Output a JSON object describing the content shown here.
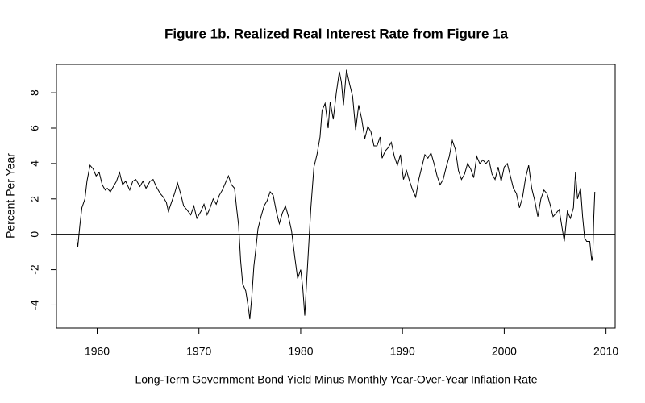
{
  "chart_data": {
    "type": "line",
    "title": "Figure 1b.    Realized Real Interest Rate from Figure 1a",
    "xlabel": "Long-Term Government Bond Yield Minus Monthly Year-Over-Year Inflation Rate",
    "ylabel": "Percent Per Year",
    "xlim": [
      1956,
      2010.9
    ],
    "ylim": [
      -5.3,
      9.6
    ],
    "xticks": [
      1960,
      1970,
      1980,
      1990,
      2000,
      2010
    ],
    "yticks": [
      -4,
      -2,
      0,
      2,
      4,
      6,
      8
    ],
    "hline": 0,
    "series": [
      {
        "color": "#000000",
        "x": [
          1958.0,
          1958.1,
          1958.3,
          1958.5,
          1958.8,
          1959.0,
          1959.3,
          1959.6,
          1959.9,
          1960.2,
          1960.5,
          1960.8,
          1961.0,
          1961.3,
          1961.6,
          1961.9,
          1962.2,
          1962.5,
          1962.8,
          1963.2,
          1963.5,
          1963.8,
          1964.2,
          1964.5,
          1964.8,
          1965.2,
          1965.5,
          1965.8,
          1966.2,
          1966.5,
          1966.8,
          1967.0,
          1967.3,
          1967.6,
          1967.9,
          1968.2,
          1968.5,
          1968.8,
          1969.2,
          1969.5,
          1969.8,
          1970.2,
          1970.5,
          1970.8,
          1971.1,
          1971.4,
          1971.7,
          1972.0,
          1972.3,
          1972.6,
          1972.9,
          1973.2,
          1973.5,
          1973.7,
          1973.9,
          1974.1,
          1974.3,
          1974.6,
          1974.9,
          1975.0,
          1975.2,
          1975.4,
          1975.6,
          1975.8,
          1976.1,
          1976.4,
          1976.7,
          1977.0,
          1977.3,
          1977.6,
          1977.9,
          1978.2,
          1978.5,
          1978.8,
          1979.1,
          1979.4,
          1979.7,
          1980.0,
          1980.2,
          1980.4,
          1980.6,
          1980.8,
          1981.0,
          1981.3,
          1981.6,
          1981.9,
          1982.1,
          1982.4,
          1982.7,
          1982.9,
          1983.2,
          1983.5,
          1983.8,
          1984.0,
          1984.2,
          1984.5,
          1984.8,
          1985.1,
          1985.4,
          1985.7,
          1986.0,
          1986.3,
          1986.6,
          1986.9,
          1987.2,
          1987.5,
          1987.8,
          1988.0,
          1988.3,
          1988.6,
          1988.9,
          1989.2,
          1989.5,
          1989.8,
          1990.1,
          1990.4,
          1990.7,
          1991.0,
          1991.3,
          1991.6,
          1991.9,
          1992.2,
          1992.5,
          1992.8,
          1993.1,
          1993.4,
          1993.7,
          1994.0,
          1994.3,
          1994.6,
          1994.9,
          1995.2,
          1995.5,
          1995.8,
          1996.1,
          1996.4,
          1996.7,
          1997.0,
          1997.3,
          1997.6,
          1997.9,
          1998.2,
          1998.5,
          1998.8,
          1999.1,
          1999.4,
          1999.7,
          2000.0,
          2000.3,
          2000.6,
          2000.9,
          2001.2,
          2001.5,
          2001.8,
          2002.1,
          2002.4,
          2002.7,
          2003.0,
          2003.3,
          2003.6,
          2003.9,
          2004.2,
          2004.5,
          2004.8,
          2005.1,
          2005.4,
          2005.7,
          2005.9,
          2006.2,
          2006.5,
          2006.8,
          2007.0,
          2007.2,
          2007.5,
          2007.7,
          2007.9,
          2008.1,
          2008.4,
          2008.6,
          2008.7,
          2008.8,
          2008.9
        ],
        "values": [
          -0.3,
          -0.7,
          0.5,
          1.5,
          2.0,
          3.0,
          3.9,
          3.7,
          3.3,
          3.5,
          2.8,
          2.5,
          2.6,
          2.4,
          2.7,
          3.0,
          3.5,
          2.8,
          3.0,
          2.5,
          3.0,
          3.1,
          2.7,
          3.0,
          2.6,
          3.0,
          3.1,
          2.7,
          2.3,
          2.1,
          1.8,
          1.3,
          1.8,
          2.3,
          2.9,
          2.3,
          1.6,
          1.4,
          1.1,
          1.6,
          0.9,
          1.3,
          1.7,
          1.1,
          1.5,
          2.0,
          1.7,
          2.2,
          2.5,
          2.9,
          3.3,
          2.8,
          2.6,
          1.5,
          0.5,
          -1.5,
          -2.8,
          -3.2,
          -4.3,
          -4.8,
          -3.5,
          -1.8,
          -0.8,
          0.3,
          1.0,
          1.6,
          1.9,
          2.4,
          2.2,
          1.3,
          0.6,
          1.2,
          1.6,
          1.0,
          0.2,
          -1.2,
          -2.5,
          -2.0,
          -3.0,
          -4.6,
          -2.5,
          -0.5,
          1.5,
          3.8,
          4.5,
          5.5,
          7.0,
          7.4,
          6.0,
          7.5,
          6.5,
          8.0,
          9.2,
          8.6,
          7.3,
          9.3,
          8.5,
          7.8,
          5.9,
          7.3,
          6.5,
          5.4,
          6.1,
          5.8,
          5.0,
          5.0,
          5.5,
          4.3,
          4.7,
          4.9,
          5.2,
          4.4,
          3.9,
          4.5,
          3.1,
          3.6,
          3.0,
          2.5,
          2.1,
          3.1,
          3.8,
          4.5,
          4.3,
          4.6,
          4.0,
          3.3,
          2.8,
          3.1,
          3.8,
          4.4,
          5.3,
          4.8,
          3.6,
          3.1,
          3.4,
          4.0,
          3.7,
          3.2,
          4.4,
          4.0,
          4.2,
          4.0,
          4.2,
          3.4,
          3.1,
          3.8,
          3.0,
          3.8,
          4.0,
          3.3,
          2.6,
          2.3,
          1.5,
          2.1,
          3.2,
          3.9,
          2.6,
          1.9,
          1.0,
          2.0,
          2.5,
          2.3,
          1.7,
          1.0,
          1.2,
          1.4,
          0.3,
          -0.4,
          1.3,
          0.9,
          1.5,
          3.5,
          2.0,
          2.6,
          1.0,
          -0.2,
          -0.4,
          -0.4,
          -1.5,
          -1.2,
          1.0,
          2.4
        ]
      }
    ]
  }
}
